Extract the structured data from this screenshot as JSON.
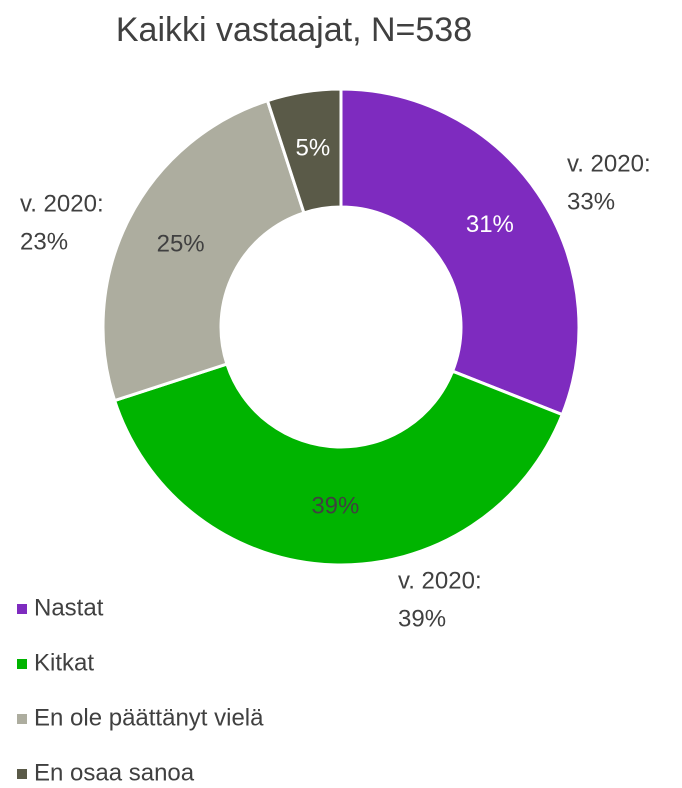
{
  "chart_data": {
    "type": "donut",
    "title": "Kaikki vastaajat, N=538",
    "categories": [
      "Nastat",
      "Kitkat",
      "En ole päättänyt vielä",
      "En osaa sanoa"
    ],
    "values": [
      31,
      39,
      25,
      5
    ],
    "value_labels": [
      "31%",
      "39%",
      "25%",
      "5%"
    ],
    "colors": [
      "#7e2bbf",
      "#00b400",
      "#adad9f",
      "#5a5a48"
    ],
    "label_colors": [
      "#ffffff",
      "#404040",
      "#404040",
      "#ffffff"
    ],
    "annotations": [
      [
        "v. 2020:",
        "33%"
      ],
      [
        "v. 2020:",
        "39%"
      ],
      [
        "v. 2020:",
        "23%"
      ]
    ],
    "legend": "bottom-left"
  }
}
